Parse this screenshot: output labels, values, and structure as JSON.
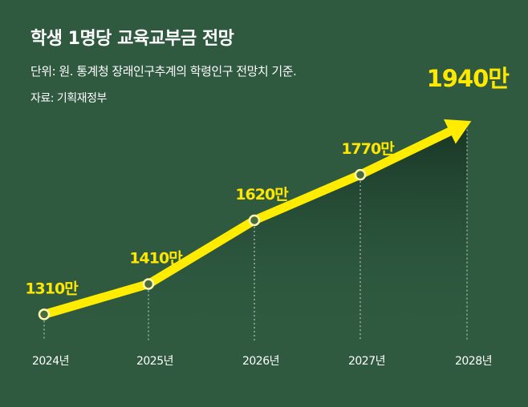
{
  "header": {
    "title": "학생 1명당 교육교부금 전망",
    "note": "단위: 원. 통계청 장래인구추계의 학령인구 전망치 기준.",
    "source": "자료: 기획재정부"
  },
  "colors": {
    "background": "#2f5a40",
    "line": "#ffec00",
    "label": "#ffe800",
    "axis_text": "#ffffff",
    "area_top": "#1c3a28"
  },
  "chart_data": {
    "type": "line",
    "title": "학생 1명당 교육교부금 전망",
    "categories": [
      "2024년",
      "2025년",
      "2026년",
      "2027년",
      "2028년"
    ],
    "values": [
      1310,
      1410,
      1620,
      1770,
      1940
    ],
    "data_labels": [
      "1310만",
      "1410만",
      "1620만",
      "1770만",
      "1940만"
    ],
    "unit": "원",
    "ylim": [
      1100,
      2050
    ],
    "grid": false,
    "last_point_arrow": true
  }
}
